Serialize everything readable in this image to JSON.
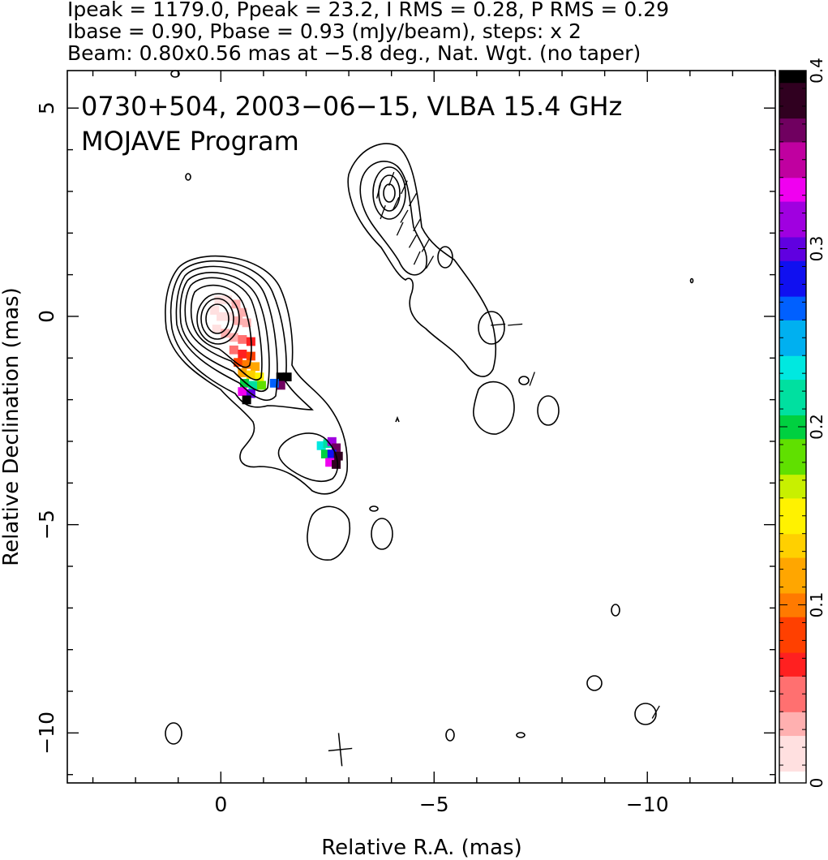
{
  "header": {
    "line1": "Ipeak = 1179.0, Ppeak = 23.2, I RMS = 0.28, P RMS = 0.29",
    "line2": "Ibase = 0.90, Pbase = 0.93 (mJy/beam), steps: x 2",
    "line3": "Beam: 0.80x0.56 mas at −5.8 deg., Nat. Wgt. (no taper)"
  },
  "annotation": {
    "source_line": "0730+504, 2003−06−15, VLBA 15.4 GHz",
    "program_line": "MOJAVE Program"
  },
  "chart_data": {
    "type": "heatmap",
    "xlabel": "Relative R.A. (mas)",
    "ylabel": "Relative Declination (mas)",
    "xlim": [
      3.6,
      -13.0
    ],
    "ylim": [
      -11.2,
      5.9
    ],
    "x_ticks": [
      {
        "value": 0,
        "label": "0"
      },
      {
        "value": -5,
        "label": "−5"
      },
      {
        "value": -10,
        "label": "−10"
      }
    ],
    "y_ticks": [
      {
        "value": 5,
        "label": "5"
      },
      {
        "value": 0,
        "label": "0"
      },
      {
        "value": -5,
        "label": "−5"
      },
      {
        "value": -10,
        "label": "−10"
      }
    ],
    "colorbar": {
      "range": [
        0,
        0.4
      ],
      "ticks": [
        {
          "value": 0,
          "label": "0"
        },
        {
          "value": 0.1,
          "label": "0.1"
        },
        {
          "value": 0.2,
          "label": "0.2"
        },
        {
          "value": 0.3,
          "label": "0.3"
        },
        {
          "value": 0.4,
          "label": "0.4"
        }
      ],
      "colors": [
        "#ffffff",
        "#ffe0e0",
        "#ffb0b0",
        "#ff7070",
        "#ff2020",
        "#ff4000",
        "#ff7a00",
        "#ffa600",
        "#ffd000",
        "#fff200",
        "#c8f000",
        "#60e000",
        "#00d040",
        "#00e0a0",
        "#00e8e0",
        "#00b0f0",
        "#0060ff",
        "#1010f0",
        "#6000e0",
        "#a000e0",
        "#f000f0",
        "#c000a0",
        "#700060",
        "#300020",
        "#000000"
      ]
    },
    "beam": {
      "major_mas": 0.8,
      "minor_mas": 0.56,
      "pa_deg": -5.8
    },
    "core_peak_mas": [
      0.0,
      0.0
    ],
    "fractional_polarization_pixels": [
      {
        "x": 0.05,
        "y": 0.4,
        "value": 0.02
      },
      {
        "x": -0.15,
        "y": 0.4,
        "value": 0.02
      },
      {
        "x": -0.35,
        "y": 0.3,
        "value": 0.03
      },
      {
        "x": -0.5,
        "y": 0.1,
        "value": 0.03
      },
      {
        "x": 0.15,
        "y": 0.15,
        "value": 0.02
      },
      {
        "x": 0.0,
        "y": 0.0,
        "value": 0.02
      },
      {
        "x": -0.2,
        "y": 0.0,
        "value": 0.02
      },
      {
        "x": -0.4,
        "y": -0.1,
        "value": 0.03
      },
      {
        "x": -0.6,
        "y": -0.15,
        "value": 0.04
      },
      {
        "x": 0.1,
        "y": -0.3,
        "value": 0.02
      },
      {
        "x": -0.1,
        "y": -0.4,
        "value": 0.03
      },
      {
        "x": -0.3,
        "y": -0.5,
        "value": 0.04
      },
      {
        "x": -0.5,
        "y": -0.55,
        "value": 0.05
      },
      {
        "x": -0.7,
        "y": -0.6,
        "value": 0.06
      },
      {
        "x": -0.3,
        "y": -0.8,
        "value": 0.05
      },
      {
        "x": -0.5,
        "y": -0.9,
        "value": 0.07
      },
      {
        "x": -0.7,
        "y": -0.95,
        "value": 0.08
      },
      {
        "x": -0.4,
        "y": -1.1,
        "value": 0.09
      },
      {
        "x": -0.6,
        "y": -1.15,
        "value": 0.1
      },
      {
        "x": -0.8,
        "y": -1.2,
        "value": 0.11
      },
      {
        "x": -0.5,
        "y": -1.35,
        "value": 0.12
      },
      {
        "x": -0.7,
        "y": -1.4,
        "value": 0.14
      },
      {
        "x": -0.9,
        "y": -1.45,
        "value": 0.15
      },
      {
        "x": -0.55,
        "y": -1.6,
        "value": 0.2
      },
      {
        "x": -0.75,
        "y": -1.65,
        "value": 0.22
      },
      {
        "x": -0.95,
        "y": -1.65,
        "value": 0.18
      },
      {
        "x": -0.5,
        "y": -1.8,
        "value": 0.34
      },
      {
        "x": -0.7,
        "y": -1.85,
        "value": 0.3
      },
      {
        "x": -0.6,
        "y": -2.0,
        "value": 0.4
      },
      {
        "x": -1.4,
        "y": -1.45,
        "value": 0.4
      },
      {
        "x": -1.55,
        "y": -1.45,
        "value": 0.4
      },
      {
        "x": -1.4,
        "y": -1.65,
        "value": 0.36
      },
      {
        "x": -1.25,
        "y": -1.6,
        "value": 0.26
      },
      {
        "x": -2.35,
        "y": -3.1,
        "value": 0.24
      },
      {
        "x": -2.5,
        "y": -3.05,
        "value": 0.22
      },
      {
        "x": -2.6,
        "y": -3.0,
        "value": 0.32
      },
      {
        "x": -2.7,
        "y": -3.15,
        "value": 0.36
      },
      {
        "x": -2.45,
        "y": -3.3,
        "value": 0.2
      },
      {
        "x": -2.6,
        "y": -3.3,
        "value": 0.28
      },
      {
        "x": -2.75,
        "y": -3.35,
        "value": 0.38
      },
      {
        "x": -2.55,
        "y": -3.5,
        "value": 0.34
      },
      {
        "x": -2.7,
        "y": -3.55,
        "value": 0.38
      }
    ],
    "evpa_ticks": [
      {
        "x": -4.0,
        "y": 3.3,
        "angle_deg": 20
      },
      {
        "x": -4.3,
        "y": 3.1,
        "angle_deg": 25
      },
      {
        "x": -3.7,
        "y": 3.0,
        "angle_deg": 15
      },
      {
        "x": -4.1,
        "y": 2.7,
        "angle_deg": 25
      },
      {
        "x": -4.5,
        "y": 2.8,
        "angle_deg": 30
      },
      {
        "x": -3.8,
        "y": 2.5,
        "angle_deg": 20
      },
      {
        "x": -4.3,
        "y": 2.4,
        "angle_deg": 30
      },
      {
        "x": -4.6,
        "y": 2.2,
        "angle_deg": 30
      },
      {
        "x": -4.2,
        "y": 2.1,
        "angle_deg": 25
      },
      {
        "x": -4.5,
        "y": 1.8,
        "angle_deg": 30
      },
      {
        "x": -4.8,
        "y": 1.7,
        "angle_deg": 30
      },
      {
        "x": -4.6,
        "y": 1.4,
        "angle_deg": 25
      },
      {
        "x": -4.9,
        "y": 1.3,
        "angle_deg": 30
      },
      {
        "x": -6.5,
        "y": -0.2,
        "angle_deg": 85
      },
      {
        "x": -6.9,
        "y": -0.2,
        "angle_deg": 85
      },
      {
        "x": -7.3,
        "y": -1.5,
        "angle_deg": 20
      },
      {
        "x": -10.2,
        "y": -9.5,
        "angle_deg": 30
      }
    ]
  }
}
